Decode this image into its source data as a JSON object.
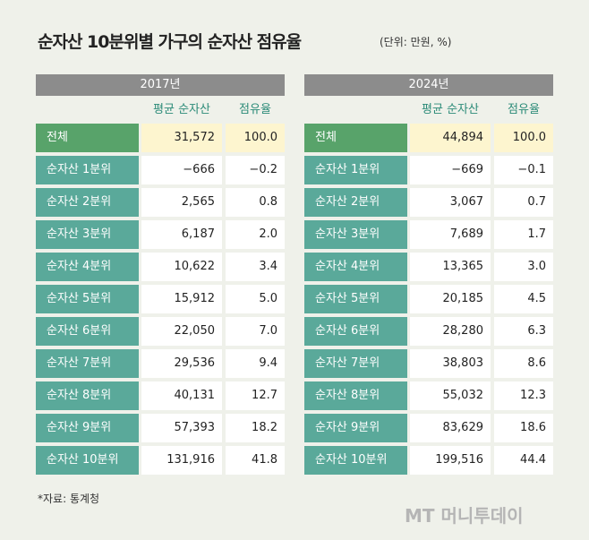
{
  "header": {
    "title": "순자산 10분위별 가구의 순자산 점유율",
    "unit": "(단위: 만원, %)"
  },
  "tables": [
    {
      "year": "2017년",
      "columns": [
        "평균 순자산",
        "점유율"
      ],
      "rows": [
        [
          "전체",
          "31,572",
          "100.0"
        ],
        [
          "순자산 1분위",
          "−666",
          "−0.2"
        ],
        [
          "순자산 2분위",
          "2,565",
          "0.8"
        ],
        [
          "순자산 3분위",
          "6,187",
          "2.0"
        ],
        [
          "순자산 4분위",
          "10,622",
          "3.4"
        ],
        [
          "순자산 5분위",
          "15,912",
          "5.0"
        ],
        [
          "순자산 6분위",
          "22,050",
          "7.0"
        ],
        [
          "순자산 7분위",
          "29,536",
          "9.4"
        ],
        [
          "순자산 8분위",
          "40,131",
          "12.7"
        ],
        [
          "순자산 9분위",
          "57,393",
          "18.2"
        ],
        [
          "순자산 10분위",
          "131,916",
          "41.8"
        ]
      ]
    },
    {
      "year": "2024년",
      "columns": [
        "평균 순자산",
        "점유율"
      ],
      "rows": [
        [
          "전체",
          "44,894",
          "100.0"
        ],
        [
          "순자산 1분위",
          "−669",
          "−0.1"
        ],
        [
          "순자산 2분위",
          "3,067",
          "0.7"
        ],
        [
          "순자산 3분위",
          "7,689",
          "1.7"
        ],
        [
          "순자산 4분위",
          "13,365",
          "3.0"
        ],
        [
          "순자산 5분위",
          "20,185",
          "4.5"
        ],
        [
          "순자산 6분위",
          "28,280",
          "6.3"
        ],
        [
          "순자산 7분위",
          "38,803",
          "8.6"
        ],
        [
          "순자산 8분위",
          "55,032",
          "12.3"
        ],
        [
          "순자산 9분위",
          "83,629",
          "18.6"
        ],
        [
          "순자산 10분위",
          "199,516",
          "44.4"
        ]
      ]
    }
  ],
  "footer": {
    "source": "*자료: 통계청",
    "watermark": "MT 머니투데이"
  }
}
